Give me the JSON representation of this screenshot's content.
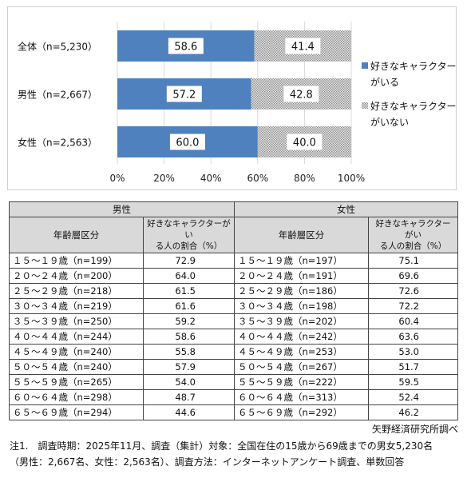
{
  "chart_data": {
    "type": "bar",
    "orientation": "horizontal-stacked-100",
    "categories": [
      "全体（n=5,230）",
      "男性（n=2,667）",
      "女性（n=2,563）"
    ],
    "series": [
      {
        "name": "好きなキャラクターがいる",
        "values": [
          58.6,
          57.2,
          60.0
        ],
        "labels": [
          "58.6",
          "57.2",
          "60.0"
        ],
        "color": "#4e81bd",
        "pattern": "solid"
      },
      {
        "name": "好きなキャラクターがいない",
        "values": [
          41.4,
          42.8,
          40.0
        ],
        "labels": [
          "41.4",
          "42.8",
          "40.0"
        ],
        "color": "#a9a9a9",
        "pattern": "dotted"
      }
    ],
    "x_ticks": [
      "0%",
      "20%",
      "40%",
      "60%",
      "80%",
      "100%"
    ],
    "xlim": [
      0,
      100
    ],
    "grid": true,
    "legend_position": "right",
    "legend": [
      {
        "lines": [
          "好きなキャラクター",
          "がいる"
        ]
      },
      {
        "lines": [
          "好きなキャラクター",
          "がいない"
        ]
      }
    ]
  },
  "table": {
    "male_header": "男性",
    "female_header": "女性",
    "col_age": "年齢層区分",
    "col_ratio_line1": "好きなキャラクターがい",
    "col_ratio_line2": "る人の割合（%）",
    "male_rows": [
      {
        "age": "１５～１９歳（n=199）",
        "value": "72.9"
      },
      {
        "age": "２０～２４歳（n=200）",
        "value": "64.0"
      },
      {
        "age": "２５～２９歳（n=218）",
        "value": "61.5"
      },
      {
        "age": "３０～３４歳（n=219）",
        "value": "61.6"
      },
      {
        "age": "３５～３９歳（n=250）",
        "value": "59.2"
      },
      {
        "age": "４０～４４歳（n=244）",
        "value": "58.6"
      },
      {
        "age": "４５～４９歳（n=240）",
        "value": "55.8"
      },
      {
        "age": "５０～５４歳（n=240）",
        "value": "57.9"
      },
      {
        "age": "５５～５９歳（n=265）",
        "value": "54.0"
      },
      {
        "age": "６０～６４歳（n=298）",
        "value": "48.7"
      },
      {
        "age": "６５～６９歳（n=294）",
        "value": "44.6"
      }
    ],
    "female_rows": [
      {
        "age": "１５～１９歳（n=197）",
        "value": "75.1"
      },
      {
        "age": "２０～２４歳（n=191）",
        "value": "69.6"
      },
      {
        "age": "２５～２９歳（n=186）",
        "value": "72.6"
      },
      {
        "age": "３０～３４歳（n=198）",
        "value": "72.2"
      },
      {
        "age": "３５～３９歳（n=202）",
        "value": "60.4"
      },
      {
        "age": "４０～４４歳（n=242）",
        "value": "63.6"
      },
      {
        "age": "４５～４９歳（n=253）",
        "value": "53.0"
      },
      {
        "age": "５０～５４歳（n=267）",
        "value": "51.7"
      },
      {
        "age": "５５～５９歳（n=222）",
        "value": "59.5"
      },
      {
        "age": "６０～６４歳（n=313）",
        "value": "52.4"
      },
      {
        "age": "６５～６９歳（n=292）",
        "value": "46.2"
      }
    ]
  },
  "source": "矢野経済研究所調べ",
  "note": {
    "line1": "注1.　調査時期：2025年11月、調査（集計）対象：全国在住の15歳から69歳までの男女5,230名",
    "line2": "（男性：2,667名、女性：2,563名）、調査方法：インターネットアンケート調査、単数回答"
  }
}
